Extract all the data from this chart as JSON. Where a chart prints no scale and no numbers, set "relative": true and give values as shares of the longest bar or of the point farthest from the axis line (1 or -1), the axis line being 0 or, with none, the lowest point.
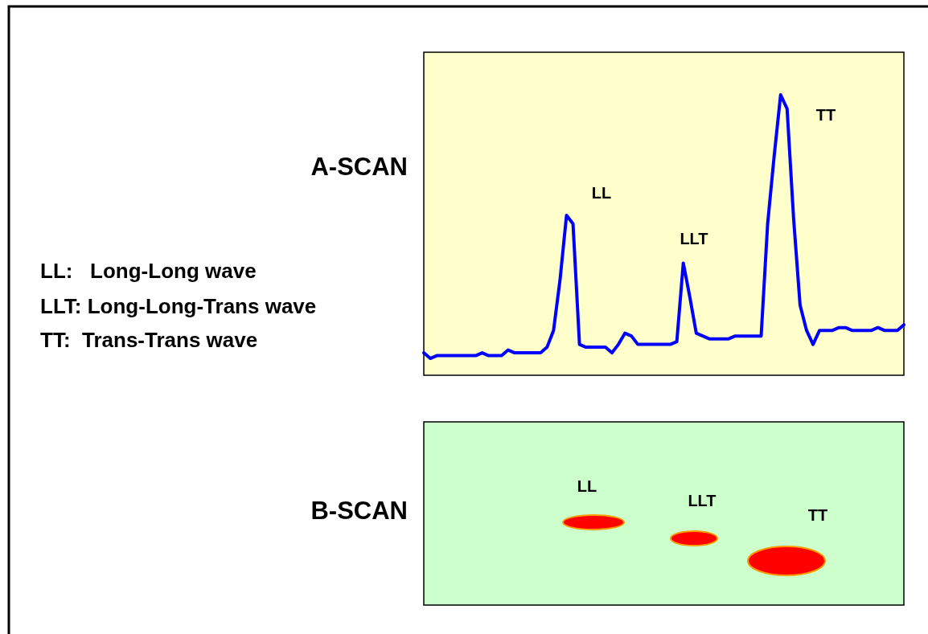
{
  "chart_data": [
    {
      "type": "line",
      "title": "A-SCAN",
      "relative": true,
      "categories": [
        null,
        null,
        null,
        null,
        null,
        null,
        null,
        null,
        null,
        null,
        null,
        null,
        null,
        null,
        null,
        null,
        null,
        null,
        null,
        null,
        null,
        null,
        null,
        null,
        null,
        null,
        null,
        null,
        null,
        null,
        null,
        null,
        null,
        null,
        null,
        null,
        null,
        null,
        null,
        null,
        null,
        null,
        null,
        null,
        null,
        null,
        null,
        null,
        null,
        null,
        null,
        null,
        null,
        null,
        null,
        null,
        null,
        null,
        null,
        null,
        null,
        null,
        null,
        null,
        null,
        null,
        null,
        null,
        null,
        null,
        null,
        null,
        null,
        null,
        null
      ],
      "series": [
        {
          "color": "#0000ff",
          "values": [
            0.08,
            0.06,
            0.07,
            0.07,
            0.07,
            0.07,
            0.07,
            0.07,
            0.07,
            0.08,
            0.07,
            0.07,
            0.07,
            0.09,
            0.08,
            0.08,
            0.08,
            0.08,
            0.08,
            0.1,
            0.16,
            0.34,
            0.57,
            0.54,
            0.11,
            0.1,
            0.1,
            0.1,
            0.1,
            0.08,
            0.11,
            0.15,
            0.14,
            0.11,
            0.11,
            0.11,
            0.11,
            0.11,
            0.11,
            0.12,
            0.4,
            0.28,
            0.15,
            0.14,
            0.13,
            0.13,
            0.13,
            0.13,
            0.14,
            0.14,
            0.14,
            0.14,
            0.14,
            0.54,
            0.78,
            1,
            0.95,
            0.56,
            0.25,
            0.16,
            0.11,
            0.16,
            0.16,
            0.16,
            0.17,
            0.17,
            0.16,
            0.16,
            0.16,
            0.16,
            0.17,
            0.16,
            0.16,
            0.16,
            0.18
          ]
        }
      ],
      "annotations": [
        "LL",
        "LLT",
        "TT",
        "LL:   Long-Long wave",
        "LLT: Long-Long-Trans wave",
        "TT:  Trans-Trans wave"
      ]
    },
    {
      "type": "other",
      "title": "B-SCAN",
      "annotations": [
        "LL",
        "LLT",
        "TT"
      ]
    }
  ]
}
